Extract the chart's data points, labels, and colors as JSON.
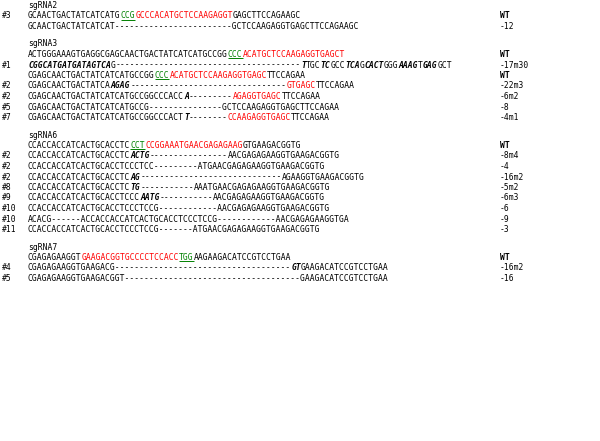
{
  "bg_color": "#ffffff",
  "font_size": 5.8,
  "sections": [
    {
      "header": "sgRNA2",
      "lines": [
        {
          "label": "#3",
          "segs": [
            [
              "GCAACTGACTATCATCATG",
              "black",
              false,
              false,
              false
            ],
            [
              "CCG",
              "green",
              false,
              false,
              true
            ],
            [
              "GCCCACATGCTCCAAGAGGT",
              "red",
              false,
              false,
              false
            ],
            [
              "GAGCTTCCAGAAGC",
              "black",
              false,
              false,
              false
            ]
          ],
          "suffix": "WT"
        },
        {
          "label": "",
          "segs": [
            [
              "GCAACTGACTATCATCAT------------------------GCTCCAAGAGGTGAGCTTCCAGAAGC",
              "black",
              false,
              false,
              false
            ]
          ],
          "suffix": "-12"
        }
      ]
    },
    {
      "header": "sgRNA3",
      "lines": [
        {
          "label": "",
          "segs": [
            [
              "ACTGGGAAAGTGAGGCGAGCAACTGACTATCATCATGCCGG",
              "black",
              false,
              false,
              false
            ],
            [
              "CCC",
              "green",
              false,
              false,
              true
            ],
            [
              "ACATGCTCCAAGAGGTGAGCT",
              "red",
              false,
              false,
              false
            ]
          ],
          "suffix": "WT"
        },
        {
          "label": "#1",
          "segs": [
            [
              "CGGCATGATGATAGTCA",
              "black",
              true,
              true,
              false
            ],
            [
              "G",
              "black",
              false,
              false,
              false
            ],
            [
              "--------------------------------------",
              "black",
              false,
              false,
              false
            ],
            [
              "T",
              "black",
              true,
              true,
              false
            ],
            [
              "TGC",
              "black",
              false,
              false,
              false
            ],
            [
              "TC",
              "black",
              true,
              true,
              false
            ],
            [
              "GCC",
              "black",
              false,
              false,
              false
            ],
            [
              "TCA",
              "black",
              true,
              true,
              false
            ],
            [
              "G",
              "black",
              false,
              false,
              false
            ],
            [
              "CACT",
              "black",
              true,
              true,
              false
            ],
            [
              "GGG",
              "black",
              false,
              false,
              false
            ],
            [
              "AAAG",
              "black",
              true,
              true,
              false
            ],
            [
              "T",
              "black",
              false,
              false,
              false
            ],
            [
              "GAG",
              "black",
              true,
              true,
              false
            ],
            [
              "GCT",
              "black",
              false,
              false,
              false
            ]
          ],
          "suffix": "-17m30"
        },
        {
          "label": "",
          "segs": [
            [
              "CGAGCAACTGACTATCATCATGCCGG",
              "black",
              false,
              false,
              false
            ],
            [
              "CCC",
              "green",
              false,
              false,
              true
            ],
            [
              "ACATGCTCCAAGAGGTGAGC",
              "red",
              false,
              false,
              false
            ],
            [
              "TTCCAGAA",
              "black",
              false,
              false,
              false
            ]
          ],
          "suffix": "WT"
        },
        {
          "label": "#2",
          "segs": [
            [
              "CGAGCAACTGACTATCA",
              "black",
              false,
              false,
              false
            ],
            [
              "AGAG",
              "black",
              true,
              true,
              false
            ],
            [
              "--------------------------------",
              "black",
              false,
              false,
              false
            ],
            [
              "GTGAGC",
              "red",
              false,
              false,
              false
            ],
            [
              "TTCCAGAA",
              "black",
              false,
              false,
              false
            ]
          ],
          "suffix": "-22m3"
        },
        {
          "label": "#2",
          "segs": [
            [
              "CGAGCAACTGACTATCATCATGCCGGCCCACC",
              "black",
              false,
              false,
              false
            ],
            [
              "A",
              "black",
              true,
              true,
              false
            ],
            [
              "---------",
              "black",
              false,
              false,
              false
            ],
            [
              "AGAGGTGAGC",
              "red",
              false,
              false,
              false
            ],
            [
              "TTCCAGAA",
              "black",
              false,
              false,
              false
            ]
          ],
          "suffix": "-6m2"
        },
        {
          "label": "#5",
          "segs": [
            [
              "CGAGCAACTGACTATCATCATGCCG---------------GCTCCAAGAGGTGAGCTTCCAGAA",
              "black",
              false,
              false,
              false
            ]
          ],
          "suffix": "-8"
        },
        {
          "label": "#7",
          "segs": [
            [
              "CGAGCAACTGACTATCATCATGCCGGCCCACT",
              "black",
              false,
              false,
              false
            ],
            [
              "T",
              "black",
              true,
              true,
              false
            ],
            [
              "--------",
              "black",
              false,
              false,
              false
            ],
            [
              "CCAAGAGGTGAGC",
              "red",
              false,
              false,
              false
            ],
            [
              "TTCCAGAA",
              "black",
              false,
              false,
              false
            ]
          ],
          "suffix": "-4m1"
        }
      ]
    },
    {
      "header": "sgRNA6",
      "lines": [
        {
          "label": "",
          "segs": [
            [
              "CCACCACCATCACTGCACCTC",
              "black",
              false,
              false,
              false
            ],
            [
              "CCT",
              "green",
              false,
              false,
              true
            ],
            [
              "CCGGAAATGAACGAGAGAAG",
              "red",
              false,
              false,
              false
            ],
            [
              "GTGAAGACGGTG",
              "black",
              false,
              false,
              false
            ]
          ],
          "suffix": "WT"
        },
        {
          "label": "#2",
          "segs": [
            [
              "CCACCACCATCACTGCACCTC",
              "black",
              false,
              false,
              false
            ],
            [
              "ACTG",
              "black",
              true,
              true,
              false
            ],
            [
              "----------------",
              "black",
              false,
              false,
              false
            ],
            [
              "AACGAGAGAAGGTGAAGACGGTG",
              "black",
              false,
              false,
              false
            ]
          ],
          "suffix": "-8m4"
        },
        {
          "label": "#2",
          "segs": [
            [
              "CCACCACCATCACTGCACCTCCCTCC---------ATGAACGAGAGAAGGTGAAGACGGTG",
              "black",
              false,
              false,
              false
            ]
          ],
          "suffix": "-4"
        },
        {
          "label": "#2",
          "segs": [
            [
              "CCACCACCATCACTGCACCTC",
              "black",
              false,
              false,
              false
            ],
            [
              "AG",
              "black",
              true,
              true,
              false
            ],
            [
              "-----------------------------",
              "black",
              false,
              false,
              false
            ],
            [
              "AGAAGGTGAAGACGGTG",
              "black",
              false,
              false,
              false
            ]
          ],
          "suffix": "-16m2"
        },
        {
          "label": "#8",
          "segs": [
            [
              "CCACCACCATCACTGCACCTC",
              "black",
              false,
              false,
              false
            ],
            [
              "TG",
              "black",
              true,
              true,
              false
            ],
            [
              "-----------",
              "black",
              false,
              false,
              false
            ],
            [
              "AAATGAACGAGAGAAGGTGAAGACGGTG",
              "black",
              false,
              false,
              false
            ]
          ],
          "suffix": "-5m2"
        },
        {
          "label": "#9",
          "segs": [
            [
              "CCACCACCATCACTGCACCTCCC",
              "black",
              false,
              false,
              false
            ],
            [
              "AATG",
              "black",
              true,
              true,
              false
            ],
            [
              "-----------",
              "black",
              false,
              false,
              false
            ],
            [
              "AACGAGAGAAGGTGAAGACGGTG",
              "black",
              false,
              false,
              false
            ]
          ],
          "suffix": "-6m3"
        },
        {
          "label": "#10",
          "segs": [
            [
              "CCACCACCATCACTGCACCTCCCTCCG------------AACGAGAGAAGGTGAAGACGGTG",
              "black",
              false,
              false,
              false
            ]
          ],
          "suffix": "-6"
        },
        {
          "label": "#10",
          "segs": [
            [
              "ACACG------ACCACCACCATCACTGCACCTCCCTCCG------------AACGAGAGAAGGTGA",
              "black",
              false,
              false,
              false
            ]
          ],
          "suffix": "-9"
        },
        {
          "label": "#11",
          "segs": [
            [
              "CCACCACCATCACTGCACCTCCCTCCG-------ATGAACGAGAGAAGGTGAAGACGGTG",
              "black",
              false,
              false,
              false
            ]
          ],
          "suffix": "-3"
        }
      ]
    },
    {
      "header": "sgRNA7",
      "lines": [
        {
          "label": "",
          "segs": [
            [
              "CGAGAGAAGGT",
              "black",
              false,
              false,
              false
            ],
            [
              "GAAGACGGTGCCCCTCCACC",
              "red",
              false,
              false,
              false
            ],
            [
              "TGG",
              "green",
              false,
              false,
              true
            ],
            [
              "AAGAAGACATCCGTCCTGAA",
              "black",
              false,
              false,
              false
            ]
          ],
          "suffix": "WT"
        },
        {
          "label": "#4",
          "segs": [
            [
              "CGAGAGAAGGTGAAGACG------------------------------------",
              "black",
              false,
              false,
              false
            ],
            [
              "GT",
              "black",
              true,
              true,
              false
            ],
            [
              "GAAGACATCCGTCCTGAA",
              "black",
              false,
              false,
              false
            ]
          ],
          "suffix": "-16m2"
        },
        {
          "label": "#5",
          "segs": [
            [
              "CGAGAGAAGGTGAAGACGGT------------------------------------GAAGACATCCGTCCTGAA",
              "black",
              false,
              false,
              false
            ]
          ],
          "suffix": "-16"
        }
      ]
    }
  ]
}
